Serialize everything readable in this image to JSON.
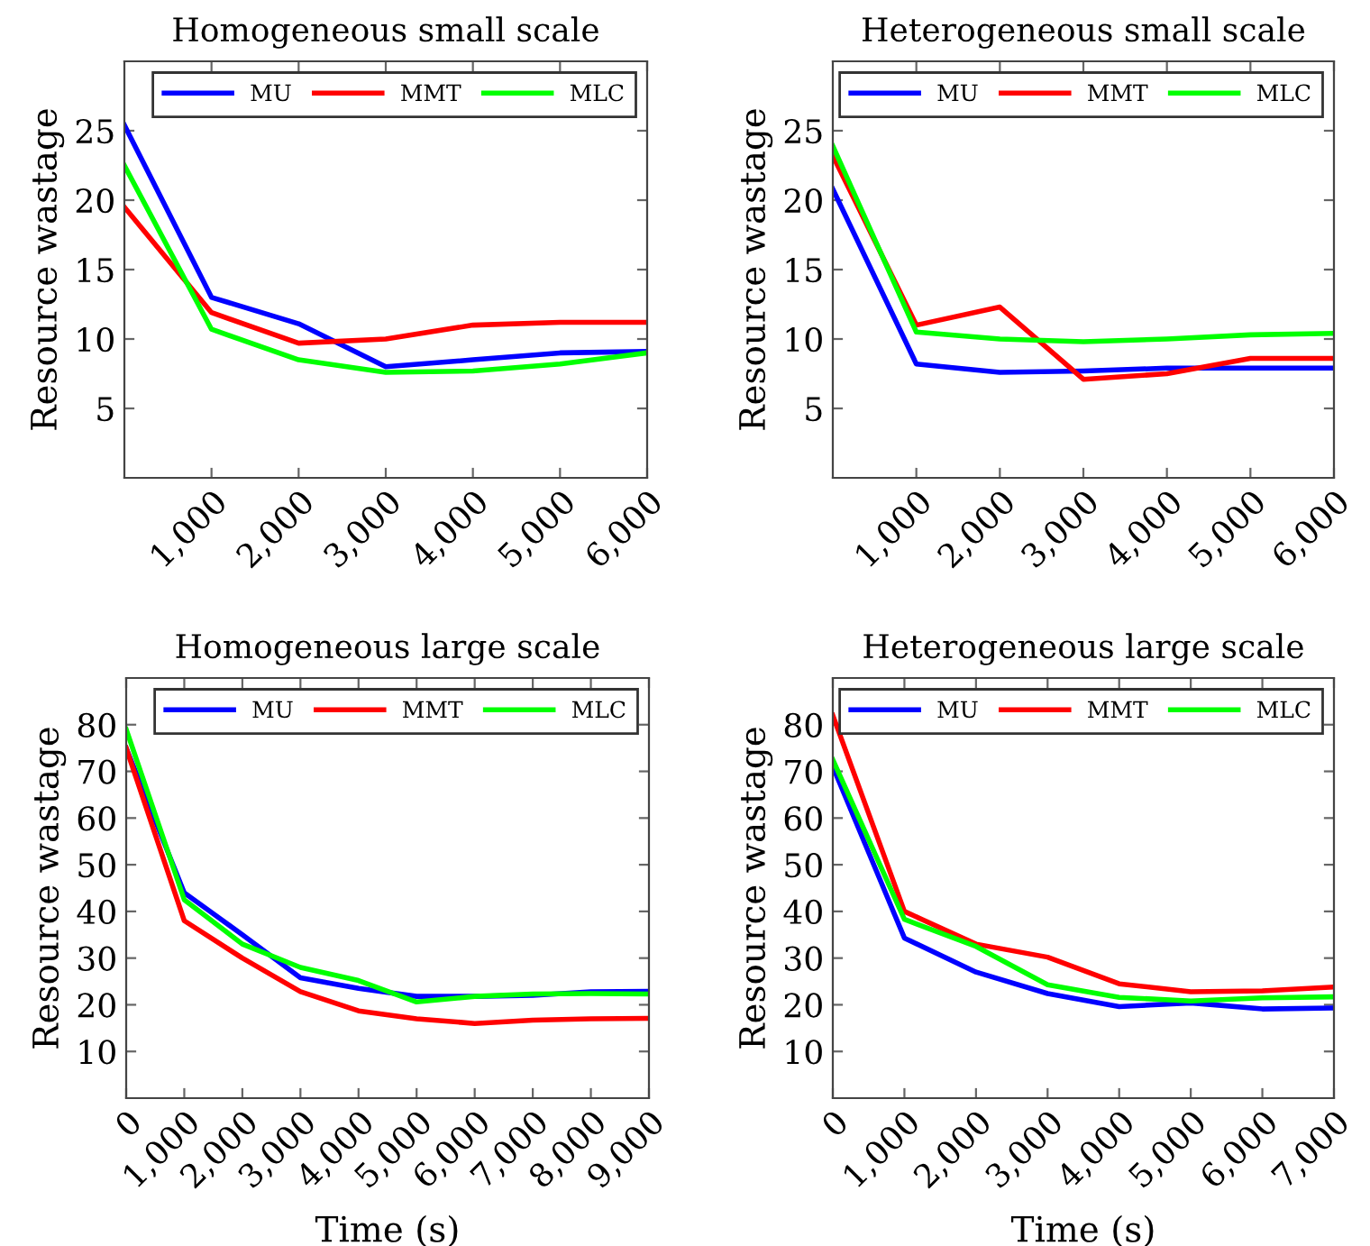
{
  "chart_data": [
    {
      "type": "line",
      "title": "Homogeneous small scale",
      "ylabel": "Resource wastage",
      "x": [
        0,
        1000,
        2000,
        3000,
        4000,
        5000,
        6000
      ],
      "xlim": [
        0,
        6000
      ],
      "ylim": [
        0,
        30
      ],
      "xticks": [
        {
          "value": 1000,
          "label": "1,000"
        },
        {
          "value": 2000,
          "label": "2,000"
        },
        {
          "value": 3000,
          "label": "3,000"
        },
        {
          "value": 4000,
          "label": "4,000"
        },
        {
          "value": 5000,
          "label": "5,000"
        },
        {
          "value": 6000,
          "label": "6,000"
        }
      ],
      "yticks": [
        5,
        10,
        15,
        20,
        25
      ],
      "legend": "top right",
      "grid": false,
      "marker": "none",
      "line_style": "solid",
      "series": [
        {
          "name": "MU",
          "color": "#0000ff",
          "values": [
            25.4,
            13.0,
            11.1,
            8.0,
            8.5,
            9.0,
            9.1
          ]
        },
        {
          "name": "MMT",
          "color": "#ff0000",
          "values": [
            19.5,
            11.9,
            9.7,
            10.0,
            11.0,
            11.2,
            11.2
          ]
        },
        {
          "name": "MLC",
          "color": "#00ff00",
          "values": [
            22.5,
            10.7,
            8.5,
            7.6,
            7.7,
            8.2,
            9.0
          ]
        }
      ]
    },
    {
      "type": "line",
      "title": "Heterogeneous small scale",
      "ylabel": "Resource wastage",
      "x": [
        0,
        1000,
        2000,
        3000,
        4000,
        5000,
        6000
      ],
      "xlim": [
        0,
        6000
      ],
      "ylim": [
        0,
        30
      ],
      "xticks": [
        {
          "value": 1000,
          "label": "1,000"
        },
        {
          "value": 2000,
          "label": "2,000"
        },
        {
          "value": 3000,
          "label": "3,000"
        },
        {
          "value": 4000,
          "label": "4,000"
        },
        {
          "value": 5000,
          "label": "5,000"
        },
        {
          "value": 6000,
          "label": "6,000"
        }
      ],
      "yticks": [
        5,
        10,
        15,
        20,
        25
      ],
      "legend": "top right",
      "grid": false,
      "marker": "none",
      "line_style": "solid",
      "series": [
        {
          "name": "MU",
          "color": "#0000ff",
          "values": [
            20.8,
            8.2,
            7.6,
            7.7,
            7.9,
            7.9,
            7.9
          ]
        },
        {
          "name": "MMT",
          "color": "#ff0000",
          "values": [
            23.2,
            11.0,
            12.3,
            7.1,
            7.5,
            8.6,
            8.6
          ]
        },
        {
          "name": "MLC",
          "color": "#00ff00",
          "values": [
            23.9,
            10.5,
            10.0,
            9.8,
            10.0,
            10.3,
            10.4
          ]
        }
      ]
    },
    {
      "type": "line",
      "title": "Homogeneous large scale",
      "xlabel": "Time (s)",
      "ylabel": "Resource wastage",
      "x": [
        0,
        1000,
        2000,
        3000,
        4000,
        5000,
        6000,
        7000,
        8000,
        9000
      ],
      "xlim": [
        0,
        9000
      ],
      "ylim": [
        0,
        90
      ],
      "xticks": [
        0,
        {
          "value": 1000,
          "label": "1,000"
        },
        {
          "value": 2000,
          "label": "2,000"
        },
        {
          "value": 3000,
          "label": "3,000"
        },
        {
          "value": 4000,
          "label": "4,000"
        },
        {
          "value": 5000,
          "label": "5,000"
        },
        {
          "value": 6000,
          "label": "6,000"
        },
        {
          "value": 7000,
          "label": "7,000"
        },
        {
          "value": 8000,
          "label": "8,000"
        },
        {
          "value": 9000,
          "label": "9,000"
        }
      ],
      "yticks": [
        10,
        20,
        30,
        40,
        50,
        60,
        70,
        80
      ],
      "legend": "top right",
      "grid": false,
      "marker": "none",
      "line_style": "solid",
      "series": [
        {
          "name": "MU",
          "color": "#0000ff",
          "values": [
            75,
            44,
            35,
            25.8,
            23.5,
            21.8,
            21.8,
            22,
            22.8,
            22.9
          ]
        },
        {
          "name": "MMT",
          "color": "#ff0000",
          "values": [
            75,
            38,
            30,
            22.8,
            18.7,
            17,
            16,
            16.7,
            17,
            17.1
          ]
        },
        {
          "name": "MLC",
          "color": "#00ff00",
          "values": [
            79,
            42.5,
            33,
            28,
            25.2,
            20.6,
            21.8,
            22.3,
            22.4,
            22.3
          ]
        }
      ]
    },
    {
      "type": "line",
      "title": "Heterogeneous large scale",
      "xlabel": "Time (s)",
      "ylabel": "Resource wastage",
      "x": [
        0,
        1000,
        2000,
        3000,
        4000,
        5000,
        6000,
        7000
      ],
      "xlim": [
        0,
        7000
      ],
      "ylim": [
        0,
        90
      ],
      "xticks": [
        0,
        {
          "value": 1000,
          "label": "1,000"
        },
        {
          "value": 2000,
          "label": "2,000"
        },
        {
          "value": 3000,
          "label": "3,000"
        },
        {
          "value": 4000,
          "label": "4,000"
        },
        {
          "value": 5000,
          "label": "5,000"
        },
        {
          "value": 6000,
          "label": "6,000"
        },
        {
          "value": 7000,
          "label": "7,000"
        }
      ],
      "yticks": [
        10,
        20,
        30,
        40,
        50,
        60,
        70,
        80
      ],
      "legend": "top right",
      "grid": false,
      "marker": "none",
      "line_style": "solid",
      "series": [
        {
          "name": "MU",
          "color": "#0000ff",
          "values": [
            71,
            34.3,
            27,
            22.4,
            19.6,
            20.4,
            19.1,
            19.3
          ]
        },
        {
          "name": "MMT",
          "color": "#ff0000",
          "values": [
            82,
            40,
            33,
            30.2,
            24.5,
            22.8,
            23,
            23.8
          ]
        },
        {
          "name": "MLC",
          "color": "#00ff00",
          "values": [
            72.5,
            38.3,
            32.5,
            24.3,
            21.6,
            20.8,
            21.5,
            21.7
          ]
        }
      ]
    }
  ]
}
